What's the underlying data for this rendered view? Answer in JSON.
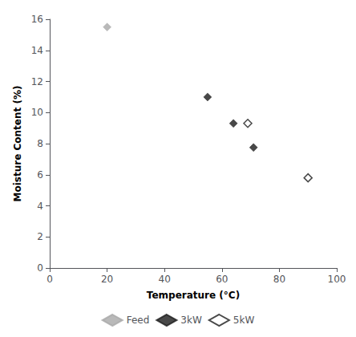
{
  "chart_data": {
    "type": "scatter",
    "xlabel": "Temperature (°C)",
    "ylabel": "Moisture Content (%)",
    "xlim": [
      0,
      100
    ],
    "ylim": [
      0,
      16
    ],
    "xticks": [
      0,
      20,
      40,
      60,
      80,
      100
    ],
    "yticks": [
      0,
      2,
      4,
      6,
      8,
      10,
      12,
      14,
      16
    ],
    "grid": false,
    "legend": "bottom",
    "series": [
      {
        "name": "Feed",
        "color": "#a8a8a8",
        "marker": "diamond",
        "x": [
          20
        ],
        "values": [
          15.5
        ]
      },
      {
        "name": "3kW",
        "color": "#1a1a1a",
        "marker": "diamond",
        "x": [
          55,
          64,
          71
        ],
        "values": [
          11.0,
          9.3,
          7.75
        ]
      },
      {
        "name": "5kW",
        "color": "#1a1a1a",
        "marker": "diamond-open",
        "x": [
          69,
          90
        ],
        "values": [
          9.3,
          5.8
        ]
      }
    ]
  }
}
